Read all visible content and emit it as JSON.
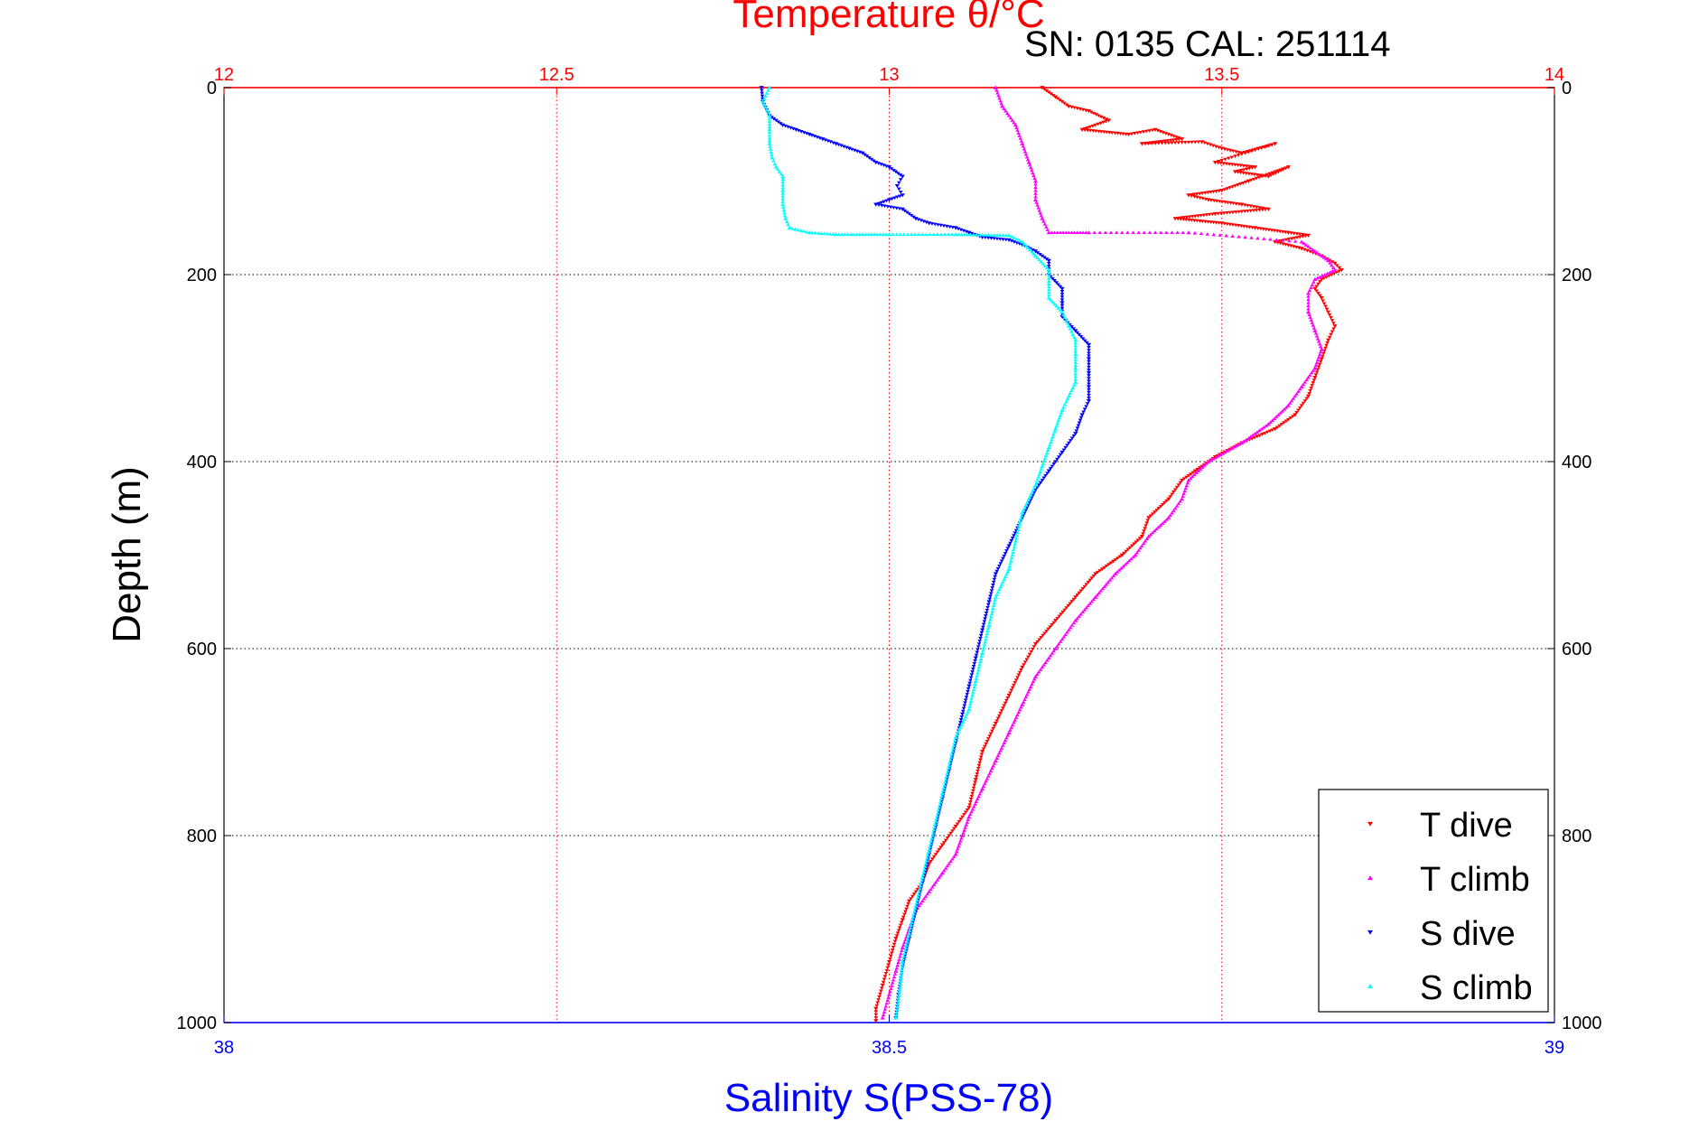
{
  "chart_data": {
    "type": "scatter",
    "title": "Temperature θ/°C",
    "subtitle": "SN: 0135  CAL: 251114",
    "ylabel": "Depth (m)",
    "xlabel": "Salinity S(PSS-78)",
    "ylim": [
      1000,
      0
    ],
    "y_ticks": [
      0,
      200,
      400,
      600,
      800,
      1000
    ],
    "y_tick_labels": [
      "0",
      "200",
      "400",
      "600",
      "800",
      "1000"
    ],
    "temperature_axis": {
      "position": "top",
      "range": [
        12,
        14
      ],
      "ticks": [
        12,
        12.5,
        13,
        13.5,
        14
      ],
      "tick_labels": [
        "12",
        "12.5",
        "13",
        "13.5",
        "14"
      ],
      "color": "#ff0000"
    },
    "salinity_axis": {
      "position": "bottom",
      "range": [
        38,
        39
      ],
      "ticks": [
        38,
        38.5,
        39
      ],
      "tick_labels": [
        "38",
        "38.5",
        "39"
      ],
      "color": "#0000ff"
    },
    "grid": true,
    "legend_position": "bottom-right",
    "series": [
      {
        "name": "T dive",
        "axis": "temperature",
        "color": "#ff0000",
        "marker": "triangle-down",
        "points": [
          [
            13.23,
            0
          ],
          [
            13.25,
            10
          ],
          [
            13.27,
            20
          ],
          [
            13.3,
            25
          ],
          [
            13.33,
            35
          ],
          [
            13.29,
            45
          ],
          [
            13.36,
            50
          ],
          [
            13.4,
            45
          ],
          [
            13.44,
            55
          ],
          [
            13.38,
            60
          ],
          [
            13.47,
            58
          ],
          [
            13.5,
            65
          ],
          [
            13.53,
            70
          ],
          [
            13.58,
            60
          ],
          [
            13.49,
            80
          ],
          [
            13.55,
            85
          ],
          [
            13.52,
            90
          ],
          [
            13.57,
            95
          ],
          [
            13.6,
            85
          ],
          [
            13.54,
            100
          ],
          [
            13.5,
            110
          ],
          [
            13.45,
            115
          ],
          [
            13.48,
            120
          ],
          [
            13.53,
            125
          ],
          [
            13.57,
            130
          ],
          [
            13.49,
            135
          ],
          [
            13.43,
            140
          ],
          [
            13.5,
            145
          ],
          [
            13.55,
            150
          ],
          [
            13.6,
            155
          ],
          [
            13.63,
            158
          ],
          [
            13.58,
            165
          ],
          [
            13.62,
            172
          ],
          [
            13.65,
            180
          ],
          [
            13.67,
            188
          ],
          [
            13.68,
            195
          ],
          [
            13.65,
            205
          ],
          [
            13.64,
            215
          ],
          [
            13.65,
            225
          ],
          [
            13.66,
            240
          ],
          [
            13.67,
            255
          ],
          [
            13.66,
            270
          ],
          [
            13.65,
            290
          ],
          [
            13.64,
            310
          ],
          [
            13.63,
            330
          ],
          [
            13.61,
            350
          ],
          [
            13.58,
            365
          ],
          [
            13.53,
            380
          ],
          [
            13.49,
            395
          ],
          [
            13.46,
            410
          ],
          [
            13.44,
            420
          ],
          [
            13.42,
            440
          ],
          [
            13.39,
            460
          ],
          [
            13.38,
            480
          ],
          [
            13.35,
            500
          ],
          [
            13.31,
            520
          ],
          [
            13.28,
            545
          ],
          [
            13.25,
            570
          ],
          [
            13.22,
            595
          ],
          [
            13.2,
            620
          ],
          [
            13.18,
            650
          ],
          [
            13.16,
            680
          ],
          [
            13.14,
            710
          ],
          [
            13.13,
            740
          ],
          [
            13.12,
            770
          ],
          [
            13.1,
            790
          ],
          [
            13.08,
            810
          ],
          [
            13.06,
            830
          ],
          [
            13.05,
            850
          ],
          [
            13.03,
            870
          ],
          [
            13.02,
            890
          ],
          [
            13.01,
            910
          ],
          [
            13.0,
            935
          ],
          [
            12.99,
            960
          ],
          [
            12.98,
            985
          ],
          [
            12.98,
            998
          ]
        ]
      },
      {
        "name": "T climb",
        "axis": "temperature",
        "color": "#ff00ff",
        "marker": "triangle-up",
        "points": [
          [
            13.16,
            0
          ],
          [
            13.17,
            20
          ],
          [
            13.19,
            40
          ],
          [
            13.2,
            60
          ],
          [
            13.21,
            80
          ],
          [
            13.22,
            100
          ],
          [
            13.22,
            120
          ],
          [
            13.23,
            140
          ],
          [
            13.24,
            155
          ],
          [
            13.3,
            155
          ],
          [
            13.45,
            155
          ],
          [
            13.62,
            165
          ],
          [
            13.64,
            175
          ],
          [
            13.66,
            185
          ],
          [
            13.67,
            195
          ],
          [
            13.64,
            205
          ],
          [
            13.63,
            220
          ],
          [
            13.63,
            240
          ],
          [
            13.64,
            260
          ],
          [
            13.65,
            280
          ],
          [
            13.64,
            300
          ],
          [
            13.62,
            320
          ],
          [
            13.6,
            340
          ],
          [
            13.57,
            360
          ],
          [
            13.53,
            380
          ],
          [
            13.48,
            400
          ],
          [
            13.45,
            420
          ],
          [
            13.44,
            440
          ],
          [
            13.42,
            460
          ],
          [
            13.39,
            480
          ],
          [
            13.37,
            500
          ],
          [
            13.34,
            520
          ],
          [
            13.31,
            545
          ],
          [
            13.28,
            570
          ],
          [
            13.25,
            600
          ],
          [
            13.22,
            630
          ],
          [
            13.2,
            660
          ],
          [
            13.18,
            690
          ],
          [
            13.16,
            720
          ],
          [
            13.14,
            750
          ],
          [
            13.12,
            780
          ],
          [
            13.11,
            800
          ],
          [
            13.1,
            820
          ],
          [
            13.08,
            840
          ],
          [
            13.06,
            860
          ],
          [
            13.04,
            880
          ],
          [
            13.03,
            900
          ],
          [
            13.02,
            920
          ],
          [
            13.01,
            945
          ],
          [
            13.0,
            970
          ],
          [
            12.99,
            995
          ]
        ]
      },
      {
        "name": "S dive",
        "axis": "salinity",
        "color": "#0000ff",
        "marker": "triangle-down",
        "points": [
          [
            38.404,
            0
          ],
          [
            38.405,
            15
          ],
          [
            38.41,
            30
          ],
          [
            38.42,
            40
          ],
          [
            38.43,
            45
          ],
          [
            38.44,
            50
          ],
          [
            38.45,
            55
          ],
          [
            38.46,
            60
          ],
          [
            38.47,
            65
          ],
          [
            38.48,
            70
          ],
          [
            38.49,
            80
          ],
          [
            38.5,
            85
          ],
          [
            38.51,
            95
          ],
          [
            38.506,
            105
          ],
          [
            38.51,
            115
          ],
          [
            38.5,
            120
          ],
          [
            38.49,
            125
          ],
          [
            38.51,
            130
          ],
          [
            38.52,
            140
          ],
          [
            38.53,
            145
          ],
          [
            38.55,
            150
          ],
          [
            38.56,
            155
          ],
          [
            38.57,
            160
          ],
          [
            38.59,
            163
          ],
          [
            38.6,
            168
          ],
          [
            38.61,
            175
          ],
          [
            38.62,
            185
          ],
          [
            38.62,
            200
          ],
          [
            38.63,
            215
          ],
          [
            38.63,
            230
          ],
          [
            38.63,
            245
          ],
          [
            38.64,
            260
          ],
          [
            38.65,
            275
          ],
          [
            38.65,
            290
          ],
          [
            38.65,
            305
          ],
          [
            38.65,
            320
          ],
          [
            38.65,
            335
          ],
          [
            38.645,
            350
          ],
          [
            38.64,
            370
          ],
          [
            38.63,
            390
          ],
          [
            38.62,
            410
          ],
          [
            38.61,
            430
          ],
          [
            38.6,
            460
          ],
          [
            38.59,
            490
          ],
          [
            38.58,
            520
          ],
          [
            38.575,
            550
          ],
          [
            38.57,
            580
          ],
          [
            38.565,
            610
          ],
          [
            38.56,
            640
          ],
          [
            38.555,
            670
          ],
          [
            38.55,
            700
          ],
          [
            38.545,
            730
          ],
          [
            38.54,
            760
          ],
          [
            38.535,
            790
          ],
          [
            38.53,
            820
          ],
          [
            38.525,
            850
          ],
          [
            38.52,
            880
          ],
          [
            38.515,
            910
          ],
          [
            38.51,
            940
          ],
          [
            38.507,
            970
          ],
          [
            38.505,
            995
          ]
        ]
      },
      {
        "name": "S climb",
        "axis": "salinity",
        "color": "#00ffff",
        "marker": "triangle-up",
        "points": [
          [
            38.41,
            0
          ],
          [
            38.405,
            15
          ],
          [
            38.41,
            30
          ],
          [
            38.41,
            45
          ],
          [
            38.41,
            60
          ],
          [
            38.412,
            75
          ],
          [
            38.415,
            85
          ],
          [
            38.42,
            95
          ],
          [
            38.42,
            110
          ],
          [
            38.42,
            125
          ],
          [
            38.422,
            140
          ],
          [
            38.425,
            150
          ],
          [
            38.44,
            155
          ],
          [
            38.46,
            157
          ],
          [
            38.5,
            157
          ],
          [
            38.55,
            157
          ],
          [
            38.59,
            158
          ],
          [
            38.6,
            165
          ],
          [
            38.61,
            180
          ],
          [
            38.62,
            195
          ],
          [
            38.62,
            210
          ],
          [
            38.62,
            225
          ],
          [
            38.63,
            240
          ],
          [
            38.635,
            255
          ],
          [
            38.64,
            270
          ],
          [
            38.64,
            285
          ],
          [
            38.64,
            300
          ],
          [
            38.64,
            315
          ],
          [
            38.635,
            330
          ],
          [
            38.63,
            345
          ],
          [
            38.625,
            365
          ],
          [
            38.62,
            385
          ],
          [
            38.615,
            405
          ],
          [
            38.61,
            425
          ],
          [
            38.6,
            455
          ],
          [
            38.595,
            485
          ],
          [
            38.59,
            515
          ],
          [
            38.58,
            545
          ],
          [
            38.575,
            575
          ],
          [
            38.57,
            605
          ],
          [
            38.565,
            635
          ],
          [
            38.56,
            665
          ],
          [
            38.55,
            695
          ],
          [
            38.545,
            725
          ],
          [
            38.54,
            755
          ],
          [
            38.535,
            785
          ],
          [
            38.53,
            815
          ],
          [
            38.525,
            845
          ],
          [
            38.52,
            875
          ],
          [
            38.515,
            905
          ],
          [
            38.51,
            935
          ],
          [
            38.508,
            965
          ],
          [
            38.505,
            995
          ]
        ]
      }
    ]
  }
}
